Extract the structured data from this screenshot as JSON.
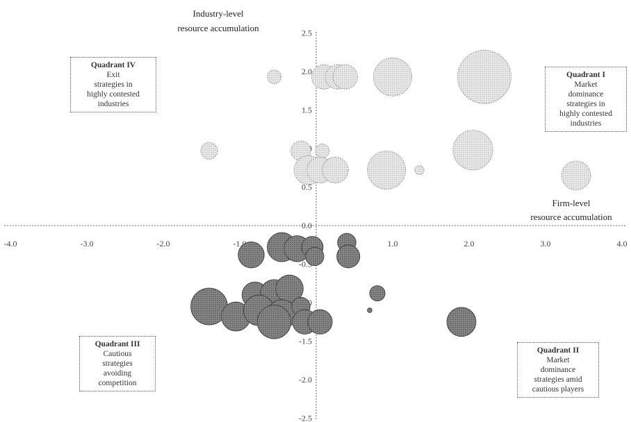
{
  "chart_data": {
    "type": "scatter",
    "subtype": "bubble",
    "title": "",
    "xlabel": [
      "Firm-level",
      "resource accumulation"
    ],
    "ylabel": [
      "Industry-level",
      "resource accumulation"
    ],
    "xlim": [
      -4.0,
      4.0
    ],
    "ylim": [
      -2.5,
      2.5
    ],
    "x_ticks": [
      -4.0,
      -3.0,
      -2.0,
      -1.0,
      0.0,
      1.0,
      2.0,
      3.0,
      4.0
    ],
    "x_tick_labels": [
      "-4.0",
      "-3.0",
      "-2.0",
      "-1.0",
      "0.0",
      "1.0",
      "2.0",
      "3.0",
      "4.0"
    ],
    "y_ticks": [
      2.5,
      2.0,
      1.5,
      1.0,
      0.5,
      0.0,
      -0.5,
      -1.0,
      -1.5,
      -2.0,
      -2.5
    ],
    "y_tick_labels": [
      "2.5",
      "2.0",
      "1.5",
      "1.0",
      "0.5",
      "0.0",
      "-0.5",
      "-1.0",
      "-1.5",
      "-2.0",
      "-2.5"
    ],
    "grid": false,
    "colors": {
      "upper": "#d0d0d0",
      "upper_stroke": "#9a9a9a",
      "lower": "#6e6e6e",
      "lower_stroke": "#444444"
    },
    "bubbles": [
      {
        "x": -0.55,
        "y": 1.93,
        "r": 0.09
      },
      {
        "x": 0.1,
        "y": 1.93,
        "r": 0.16
      },
      {
        "x": 0.28,
        "y": 1.93,
        "r": 0.16
      },
      {
        "x": 0.38,
        "y": 1.93,
        "r": 0.16
      },
      {
        "x": 1.0,
        "y": 1.93,
        "r": 0.25
      },
      {
        "x": 2.2,
        "y": 1.93,
        "r": 0.35
      },
      {
        "x": -1.4,
        "y": 0.97,
        "r": 0.11
      },
      {
        "x": -0.2,
        "y": 0.97,
        "r": 0.13
      },
      {
        "x": 0.08,
        "y": 0.97,
        "r": 0.09
      },
      {
        "x": -0.1,
        "y": 0.72,
        "r": 0.19
      },
      {
        "x": 0.05,
        "y": 0.72,
        "r": 0.17
      },
      {
        "x": 0.25,
        "y": 0.72,
        "r": 0.17
      },
      {
        "x": 0.92,
        "y": 0.72,
        "r": 0.25
      },
      {
        "x": 1.35,
        "y": 0.72,
        "r": 0.06
      },
      {
        "x": 2.05,
        "y": 0.98,
        "r": 0.26
      },
      {
        "x": 3.4,
        "y": 0.65,
        "r": 0.19
      },
      {
        "x": -0.85,
        "y": -0.38,
        "r": 0.17
      },
      {
        "x": -0.45,
        "y": -0.28,
        "r": 0.19
      },
      {
        "x": -0.25,
        "y": -0.3,
        "r": 0.17
      },
      {
        "x": -0.05,
        "y": -0.28,
        "r": 0.14
      },
      {
        "x": -0.02,
        "y": -0.4,
        "r": 0.12
      },
      {
        "x": 0.4,
        "y": -0.22,
        "r": 0.12
      },
      {
        "x": 0.42,
        "y": -0.4,
        "r": 0.15
      },
      {
        "x": -0.8,
        "y": -0.9,
        "r": 0.17
      },
      {
        "x": -0.55,
        "y": -0.88,
        "r": 0.18
      },
      {
        "x": -0.35,
        "y": -0.82,
        "r": 0.18
      },
      {
        "x": -1.4,
        "y": -1.05,
        "r": 0.24
      },
      {
        "x": -1.05,
        "y": -1.18,
        "r": 0.19
      },
      {
        "x": -0.75,
        "y": -1.1,
        "r": 0.2
      },
      {
        "x": -0.45,
        "y": -1.15,
        "r": 0.19
      },
      {
        "x": -0.55,
        "y": -1.25,
        "r": 0.22
      },
      {
        "x": -0.2,
        "y": -1.05,
        "r": 0.12
      },
      {
        "x": -0.15,
        "y": -1.25,
        "r": 0.16
      },
      {
        "x": 0.05,
        "y": -1.25,
        "r": 0.16
      },
      {
        "x": 0.8,
        "y": -0.88,
        "r": 0.1
      },
      {
        "x": 0.7,
        "y": -1.1,
        "r": 0.03
      },
      {
        "x": 1.9,
        "y": -1.25,
        "r": 0.19
      }
    ]
  },
  "quadrants": {
    "q4": {
      "title": "Quadrant IV",
      "lines": [
        "Exit",
        "strategies in",
        "highly contested",
        "industries"
      ]
    },
    "q1": {
      "title": "Quadrant I",
      "lines": [
        "Market",
        "dominance",
        "strategies in",
        "highly contested",
        "industries"
      ]
    },
    "q3": {
      "title": "Quadrant III",
      "lines": [
        "Cautious",
        "strategies",
        "avoiding",
        "competition"
      ]
    },
    "q2": {
      "title": "Quadrant II",
      "lines": [
        "Market",
        "dominance",
        "strategies amid",
        "cautious players"
      ]
    }
  }
}
